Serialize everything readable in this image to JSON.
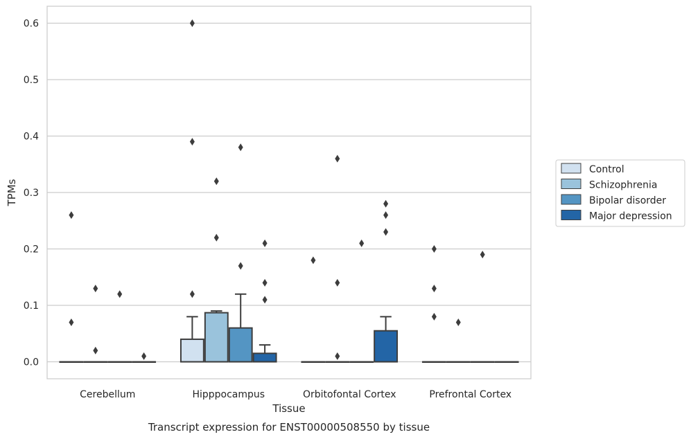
{
  "chart_data": {
    "type": "box",
    "title": "",
    "caption": "Transcript expression for ENST00000508550 by tissue",
    "xlabel": "Tissue",
    "ylabel": "TPMs",
    "ylim": [
      -0.03,
      0.63
    ],
    "yticks": [
      0.0,
      0.1,
      0.2,
      0.3,
      0.4,
      0.5,
      0.6
    ],
    "ytick_labels": [
      "0.0",
      "0.1",
      "0.2",
      "0.3",
      "0.4",
      "0.5",
      "0.6"
    ],
    "grid": "horizontal",
    "legend_position": "right",
    "categories": [
      "Cerebellum",
      "Hipppocampus",
      "Orbitofontal Cortex",
      "Prefrontal Cortex"
    ],
    "series": [
      {
        "name": "Control",
        "color": "#d1e1f0",
        "boxes": [
          {
            "q1": 0,
            "median": 0,
            "q3": 0,
            "whislo": 0,
            "whishi": 0,
            "fliers": [
              0.26,
              0.07
            ]
          },
          {
            "q1": 0,
            "median": 0,
            "q3": 0.04,
            "whislo": 0,
            "whishi": 0.08,
            "fliers": [
              0.6,
              0.39,
              0.12
            ]
          },
          {
            "q1": 0,
            "median": 0,
            "q3": 0,
            "whislo": 0,
            "whishi": 0,
            "fliers": [
              0.18
            ]
          },
          {
            "q1": 0,
            "median": 0,
            "q3": 0,
            "whislo": 0,
            "whishi": 0,
            "fliers": [
              0.2,
              0.13,
              0.08
            ]
          }
        ]
      },
      {
        "name": "Schizophrenia",
        "color": "#9ac3dc",
        "boxes": [
          {
            "q1": 0,
            "median": 0,
            "q3": 0,
            "whislo": 0,
            "whishi": 0,
            "fliers": [
              0.13,
              0.02
            ]
          },
          {
            "q1": 0,
            "median": 0,
            "q3": 0.087,
            "whislo": 0,
            "whishi": 0.09,
            "fliers": [
              0.32,
              0.22
            ]
          },
          {
            "q1": 0,
            "median": 0,
            "q3": 0,
            "whislo": 0,
            "whishi": 0,
            "fliers": [
              0.36,
              0.14,
              0.01
            ]
          },
          {
            "q1": 0,
            "median": 0,
            "q3": 0,
            "whislo": 0,
            "whishi": 0,
            "fliers": [
              0.07
            ]
          }
        ]
      },
      {
        "name": "Bipolar disorder",
        "color": "#5495c3",
        "boxes": [
          {
            "q1": 0,
            "median": 0,
            "q3": 0,
            "whislo": 0,
            "whishi": 0,
            "fliers": [
              0.12
            ]
          },
          {
            "q1": 0,
            "median": 0,
            "q3": 0.06,
            "whislo": 0,
            "whishi": 0.12,
            "fliers": [
              0.38,
              0.17
            ]
          },
          {
            "q1": 0,
            "median": 0,
            "q3": 0,
            "whislo": 0,
            "whishi": 0,
            "fliers": [
              0.21
            ]
          },
          {
            "q1": 0,
            "median": 0,
            "q3": 0,
            "whislo": 0,
            "whishi": 0,
            "fliers": [
              0.19
            ]
          }
        ]
      },
      {
        "name": "Major depression",
        "color": "#2365a6",
        "boxes": [
          {
            "q1": 0,
            "median": 0,
            "q3": 0,
            "whislo": 0,
            "whishi": 0,
            "fliers": [
              0.01
            ]
          },
          {
            "q1": 0,
            "median": 0,
            "q3": 0.015,
            "whislo": 0,
            "whishi": 0.03,
            "fliers": [
              0.21,
              0.14,
              0.11
            ]
          },
          {
            "q1": 0,
            "median": 0,
            "q3": 0.055,
            "whislo": 0,
            "whishi": 0.08,
            "fliers": [
              0.28,
              0.26,
              0.23
            ]
          },
          {
            "q1": 0,
            "median": 0,
            "q3": 0,
            "whislo": 0,
            "whishi": 0,
            "fliers": []
          }
        ]
      }
    ]
  }
}
